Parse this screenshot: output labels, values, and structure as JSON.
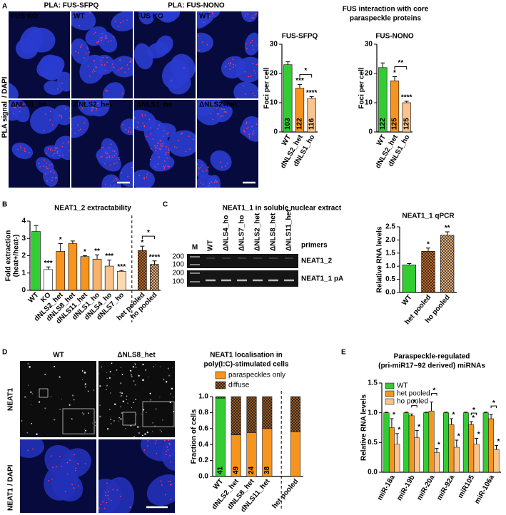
{
  "panel_labels": [
    "A",
    "B",
    "C",
    "D",
    "E"
  ],
  "panel_a": {
    "image_titles": [
      "PLA: FUS-SFPQ",
      "PLA: FUS-NONO"
    ],
    "tile_labels": [
      "FUS KO",
      "WT",
      "ΔNLS1_ho",
      "ΔNLS2_het"
    ],
    "side_label": [
      "PLA signal",
      "/ DAPI"
    ],
    "chart_title": [
      "FUS interaction with core",
      "paraspeckle proteins"
    ]
  },
  "panel_c": {
    "title": "NEAT1_1 in soluble nuclear extract",
    "lanes": [
      "M",
      "WT",
      "ΔNLS4_ho",
      "ΔNLS7_ho",
      "ΔNLS2_het",
      "ΔNLS8_het",
      "ΔNLS11_het"
    ],
    "primers": "primers",
    "bands": [
      "NEAT1_2",
      "NEAT1_1 pA"
    ],
    "size_markers": [
      200,
      100,
      200,
      100
    ]
  },
  "panel_d": {
    "columns": [
      "WT",
      "ΔNLS8_het"
    ],
    "row_label": "NEAT1",
    "merge_label": [
      "NEAT1",
      "/ DAPI"
    ]
  },
  "chart_data": [
    {
      "type": "bar",
      "title": "FUS-SFPQ",
      "ylabel": "Foci per cell",
      "categories": [
        "WT",
        "dNLS2_het",
        "dNLS1_ho"
      ],
      "values": [
        23,
        15,
        11.5
      ],
      "errors": [
        1,
        1.2,
        0.6
      ],
      "colors": [
        "#33cc33",
        "#f7941d",
        "#fbc48c"
      ],
      "counts": [
        103,
        122,
        116
      ],
      "significance": [
        null,
        "***",
        "****"
      ],
      "brackets": [
        {
          "between": [
            "dNLS2_het",
            "dNLS1_ho"
          ],
          "label": "*"
        }
      ],
      "ylim": [
        0,
        30
      ],
      "yticks": [
        0,
        10,
        20,
        30
      ]
    },
    {
      "type": "bar",
      "title": "FUS-NONO",
      "ylabel": "Foci per cell",
      "categories": [
        "WT",
        "dNLS2_het",
        "dNLS1_ho"
      ],
      "values": [
        22,
        17.5,
        10
      ],
      "errors": [
        1.6,
        1.4,
        0.5
      ],
      "colors": [
        "#33cc33",
        "#f7941d",
        "#fbc48c"
      ],
      "counts": [
        122,
        125,
        125
      ],
      "significance": [
        null,
        "*",
        "****"
      ],
      "brackets": [
        {
          "between": [
            "dNLS2_het",
            "dNLS1_ho"
          ],
          "label": "**"
        }
      ],
      "ylim": [
        0,
        30
      ],
      "yticks": [
        0,
        10,
        20,
        30
      ]
    },
    {
      "type": "bar",
      "title": "NEAT1_2 extractability",
      "ylabel": [
        "Fold extraction",
        "(heat+/heat-)"
      ],
      "categories": [
        "WT",
        "KO",
        "dNLS2_het",
        "dNLS8_het",
        "dNLS11_het",
        "dNLS1_ho",
        "dNLS4_ho",
        "dNLS7_ho",
        "het pooled",
        "ho pooled"
      ],
      "values": [
        3.4,
        1.2,
        2.25,
        2.7,
        1.95,
        1.8,
        1.4,
        1.1,
        2.3,
        1.5
      ],
      "errors": [
        0.35,
        0.15,
        0.45,
        0.15,
        0.05,
        0.25,
        0.35,
        0.05,
        0.25,
        0.2
      ],
      "colors": [
        "#33cc33",
        "#ffffff",
        "#f7941d",
        "#f7941d",
        "#f7941d",
        "#f9b26b",
        "#fbc48c",
        "#fdd9b0",
        "#c87533",
        "#f5c08a"
      ],
      "hatched": [
        false,
        false,
        false,
        false,
        false,
        false,
        false,
        false,
        true,
        true
      ],
      "significance": [
        null,
        "***",
        "*",
        null,
        "*",
        "**",
        "***",
        "***",
        "*",
        "****"
      ],
      "brackets": [
        {
          "between": [
            "het pooled",
            "ho pooled"
          ],
          "label": "*"
        }
      ],
      "ylim": [
        0,
        4
      ],
      "yticks": [
        0,
        1,
        2,
        3,
        4
      ]
    },
    {
      "type": "bar",
      "title": "NEAT1_1 qPCR",
      "ylabel": "Relative RNA levels",
      "categories": [
        "WT",
        "het pooled",
        "ho pooled"
      ],
      "values": [
        1.05,
        1.57,
        2.18
      ],
      "errors": [
        0.05,
        0.12,
        0.13
      ],
      "colors": [
        "#33cc33",
        "#c87533",
        "#f5c08a"
      ],
      "hatched": [
        false,
        true,
        true
      ],
      "significance": [
        null,
        "*",
        "**"
      ],
      "ylim": [
        0,
        2.5
      ],
      "yticks": [
        {
          "value": 0,
          "label": "0.0"
        },
        0.5,
        {
          "value": 1,
          "label": "1.0"
        },
        1.5,
        {
          "value": 2,
          "label": "2.0"
        },
        2.5
      ]
    },
    {
      "type": "bar",
      "stacked": true,
      "title": [
        "NEAT1 localisation in",
        "poly(I:C)-stimulated cells"
      ],
      "ylabel": "Fraction of cells",
      "categories": [
        "WT",
        "dNLS2_het",
        "dNLS8_het",
        "dNLS11_het",
        "het pooled"
      ],
      "series": [
        {
          "name": "paraspeckles only",
          "color": "#f7941d",
          "colors": [
            "#33cc33",
            "#f7941d",
            "#f7941d",
            "#f7941d",
            "#f7941d"
          ],
          "values": [
            0.98,
            0.52,
            0.55,
            0.6,
            0.56
          ]
        },
        {
          "name": "diffuse",
          "color": "#a0642d",
          "hatched": true,
          "values": [
            0.02,
            0.48,
            0.45,
            0.4,
            0.44
          ]
        }
      ],
      "counts": [
        41,
        49,
        24,
        38,
        null
      ],
      "ylim": [
        0,
        1
      ],
      "yticks": [
        {
          "value": 0,
          "label": "0.0"
        },
        0.2,
        0.4,
        0.6,
        0.8,
        {
          "value": 1,
          "label": "1.0"
        }
      ]
    },
    {
      "type": "bar",
      "title": [
        "Paraspeckle-regulated",
        "(pri-miR17~92 derived) miRNAs"
      ],
      "ylabel": "Relative RNA levels",
      "categories": [
        "miR-18a",
        "miR-19b",
        "miR-20a",
        "miR-92a",
        "miR105",
        "miR-106a"
      ],
      "series": [
        {
          "name": "WT",
          "color": "#33cc33",
          "values": [
            1,
            1,
            1,
            1,
            1,
            1
          ],
          "errors": [
            0.01,
            0.01,
            0.01,
            0.01,
            0.01,
            0.01
          ],
          "significance": [
            null,
            null,
            null,
            null,
            null,
            null
          ]
        },
        {
          "name": "het pooled",
          "color": "#f7941d",
          "values": [
            0.75,
            0.95,
            1.03,
            0.8,
            0.8,
            0.9
          ],
          "errors": [
            0.15,
            0.03,
            0.15,
            0.1,
            0.05,
            0.07
          ],
          "significance": [
            "*",
            null,
            null,
            "*",
            "*",
            null
          ]
        },
        {
          "name": "ho pooled",
          "color": "#fbc48c",
          "values": [
            0.47,
            0.58,
            0.33,
            0.42,
            0.47,
            0.38
          ],
          "errors": [
            0.18,
            0.12,
            0.07,
            0.12,
            0.1,
            0.07
          ],
          "significance": [
            "*",
            "*",
            "*",
            "*",
            "*",
            "*"
          ]
        }
      ],
      "brackets": [
        {
          "category": "miR-19b",
          "between": [
            "het pooled",
            "ho pooled"
          ],
          "label": "*"
        },
        {
          "category": "miR-20a",
          "between": [
            "het pooled",
            "ho pooled"
          ],
          "label": "*"
        },
        {
          "category": "miR105",
          "between": [
            "het pooled",
            "ho pooled"
          ],
          "label": "*"
        },
        {
          "category": "miR-106a",
          "between": [
            "het pooled",
            "ho pooled"
          ],
          "label": "*"
        }
      ],
      "legend": "upper left",
      "ylim": [
        0,
        1.5
      ],
      "yticks": [
        {
          "value": 0,
          "label": "0.0"
        },
        0.5,
        {
          "value": 1,
          "label": "1.0"
        },
        1.5
      ]
    }
  ]
}
